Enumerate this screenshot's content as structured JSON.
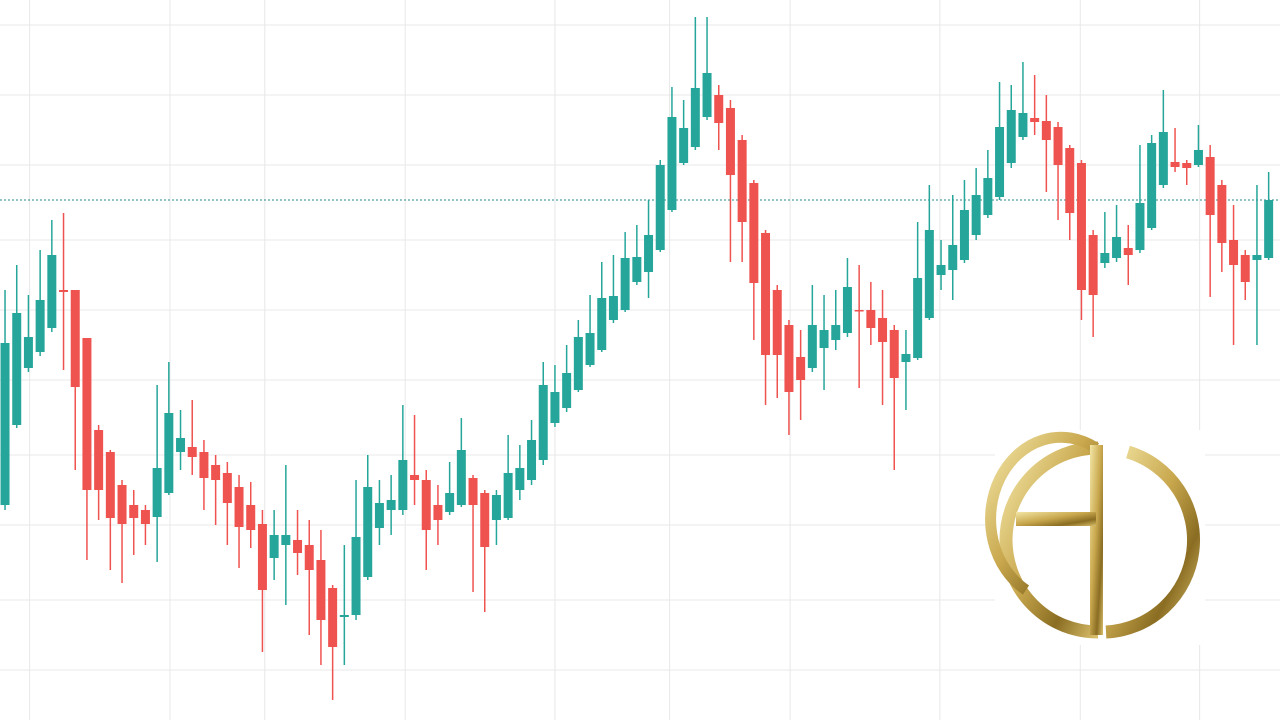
{
  "chart_data": {
    "type": "candlestick",
    "xlim": [
      -0.43,
      108.97
    ],
    "ylim": [
      0,
      720
    ],
    "xticks": [
      2.1,
      14.1,
      22.2,
      34.2,
      47,
      56.8,
      67.1,
      79.9,
      91.9,
      102.1
    ],
    "yticks": [
      50,
      120,
      195,
      265,
      340,
      410,
      480,
      555,
      625,
      695
    ],
    "grid": true,
    "price_line": 520,
    "price_line_color": "#2a8a8a",
    "up_color": "#26a69a",
    "down_color": "#ef5350",
    "ohlc": [
      [
        215,
        430,
        210,
        377
      ],
      [
        295,
        455,
        292,
        407
      ],
      [
        352,
        425,
        348,
        383
      ],
      [
        368,
        470,
        364,
        420
      ],
      [
        392,
        500,
        388,
        465
      ],
      [
        430,
        507,
        350,
        428
      ],
      [
        430,
        430,
        250,
        333
      ],
      [
        382,
        382,
        160,
        230
      ],
      [
        290,
        295,
        200,
        230
      ],
      [
        268,
        270,
        150,
        202
      ],
      [
        235,
        240,
        137,
        196
      ],
      [
        215,
        230,
        165,
        202
      ],
      [
        210,
        215,
        175,
        196
      ],
      [
        203,
        335,
        158,
        252
      ],
      [
        227,
        358,
        225,
        307
      ],
      [
        268,
        310,
        250,
        282
      ],
      [
        273,
        320,
        245,
        263
      ],
      [
        268,
        280,
        210,
        242
      ],
      [
        255,
        265,
        195,
        240
      ],
      [
        247,
        258,
        175,
        217
      ],
      [
        233,
        245,
        152,
        193
      ],
      [
        215,
        238,
        172,
        190
      ],
      [
        196,
        210,
        68,
        130
      ],
      [
        162,
        210,
        140,
        185
      ],
      [
        175,
        255,
        115,
        185
      ],
      [
        180,
        210,
        145,
        167
      ],
      [
        175,
        200,
        85,
        150
      ],
      [
        160,
        190,
        55,
        100
      ],
      [
        132,
        135,
        20,
        73
      ],
      [
        103,
        175,
        55,
        105
      ],
      [
        105,
        240,
        100,
        183
      ],
      [
        143,
        265,
        140,
        233
      ],
      [
        192,
        240,
        175,
        217
      ],
      [
        210,
        245,
        185,
        220
      ],
      [
        210,
        315,
        205,
        260
      ],
      [
        245,
        305,
        215,
        240
      ],
      [
        240,
        250,
        150,
        190
      ],
      [
        215,
        235,
        175,
        200
      ],
      [
        208,
        258,
        205,
        227
      ],
      [
        215,
        302,
        213,
        270
      ],
      [
        242,
        245,
        128,
        215
      ],
      [
        227,
        230,
        108,
        173
      ],
      [
        200,
        230,
        175,
        225
      ],
      [
        202,
        285,
        200,
        247
      ],
      [
        230,
        275,
        220,
        252
      ],
      [
        240,
        300,
        235,
        280
      ],
      [
        260,
        358,
        255,
        335
      ],
      [
        297,
        355,
        293,
        328
      ],
      [
        312,
        375,
        308,
        347
      ],
      [
        330,
        400,
        328,
        383
      ],
      [
        355,
        425,
        353,
        387
      ],
      [
        370,
        458,
        368,
        422
      ],
      [
        400,
        465,
        397,
        424
      ],
      [
        410,
        488,
        408,
        462
      ],
      [
        438,
        495,
        435,
        463
      ],
      [
        448,
        520,
        422,
        485
      ],
      [
        470,
        560,
        468,
        555
      ],
      [
        510,
        633,
        508,
        603
      ],
      [
        557,
        620,
        555,
        592
      ],
      [
        573,
        703,
        570,
        632
      ],
      [
        603,
        703,
        600,
        647
      ],
      [
        625,
        635,
        570,
        597
      ],
      [
        612,
        620,
        458,
        545
      ],
      [
        580,
        585,
        458,
        498
      ],
      [
        537,
        540,
        380,
        437
      ],
      [
        487,
        490,
        315,
        365
      ],
      [
        430,
        435,
        322,
        365
      ],
      [
        395,
        400,
        285,
        328
      ],
      [
        363,
        390,
        300,
        340
      ],
      [
        352,
        435,
        348,
        395
      ],
      [
        372,
        425,
        330,
        390
      ],
      [
        380,
        430,
        370,
        395
      ],
      [
        387,
        462,
        383,
        433
      ],
      [
        410,
        455,
        332,
        409
      ],
      [
        410,
        438,
        375,
        392
      ],
      [
        402,
        430,
        315,
        378
      ],
      [
        390,
        395,
        250,
        342
      ],
      [
        358,
        390,
        310,
        366
      ],
      [
        362,
        498,
        360,
        442
      ],
      [
        402,
        535,
        400,
        490
      ],
      [
        445,
        480,
        430,
        455
      ],
      [
        450,
        525,
        420,
        475
      ],
      [
        460,
        540,
        457,
        510
      ],
      [
        485,
        552,
        480,
        525
      ],
      [
        505,
        570,
        502,
        542
      ],
      [
        523,
        638,
        520,
        593
      ],
      [
        557,
        635,
        552,
        610
      ],
      [
        583,
        658,
        580,
        607
      ],
      [
        602,
        645,
        585,
        598
      ],
      [
        599,
        625,
        528,
        580
      ],
      [
        593,
        598,
        500,
        555
      ],
      [
        572,
        575,
        480,
        507
      ],
      [
        557,
        560,
        400,
        430
      ],
      [
        485,
        490,
        383,
        425
      ],
      [
        457,
        508,
        452,
        467
      ],
      [
        462,
        515,
        458,
        483
      ],
      [
        472,
        495,
        435,
        465
      ],
      [
        470,
        575,
        467,
        517
      ],
      [
        492,
        585,
        490,
        577
      ],
      [
        535,
        630,
        532,
        588
      ],
      [
        558,
        592,
        548,
        553
      ],
      [
        557,
        560,
        535,
        552
      ],
      [
        555,
        595,
        553,
        570
      ],
      [
        563,
        575,
        423,
        505
      ],
      [
        535,
        540,
        448,
        477
      ],
      [
        480,
        515,
        375,
        455
      ],
      [
        465,
        470,
        420,
        438
      ],
      [
        460,
        535,
        375,
        465
      ],
      [
        462,
        548,
        460,
        520
      ]
    ]
  }
}
